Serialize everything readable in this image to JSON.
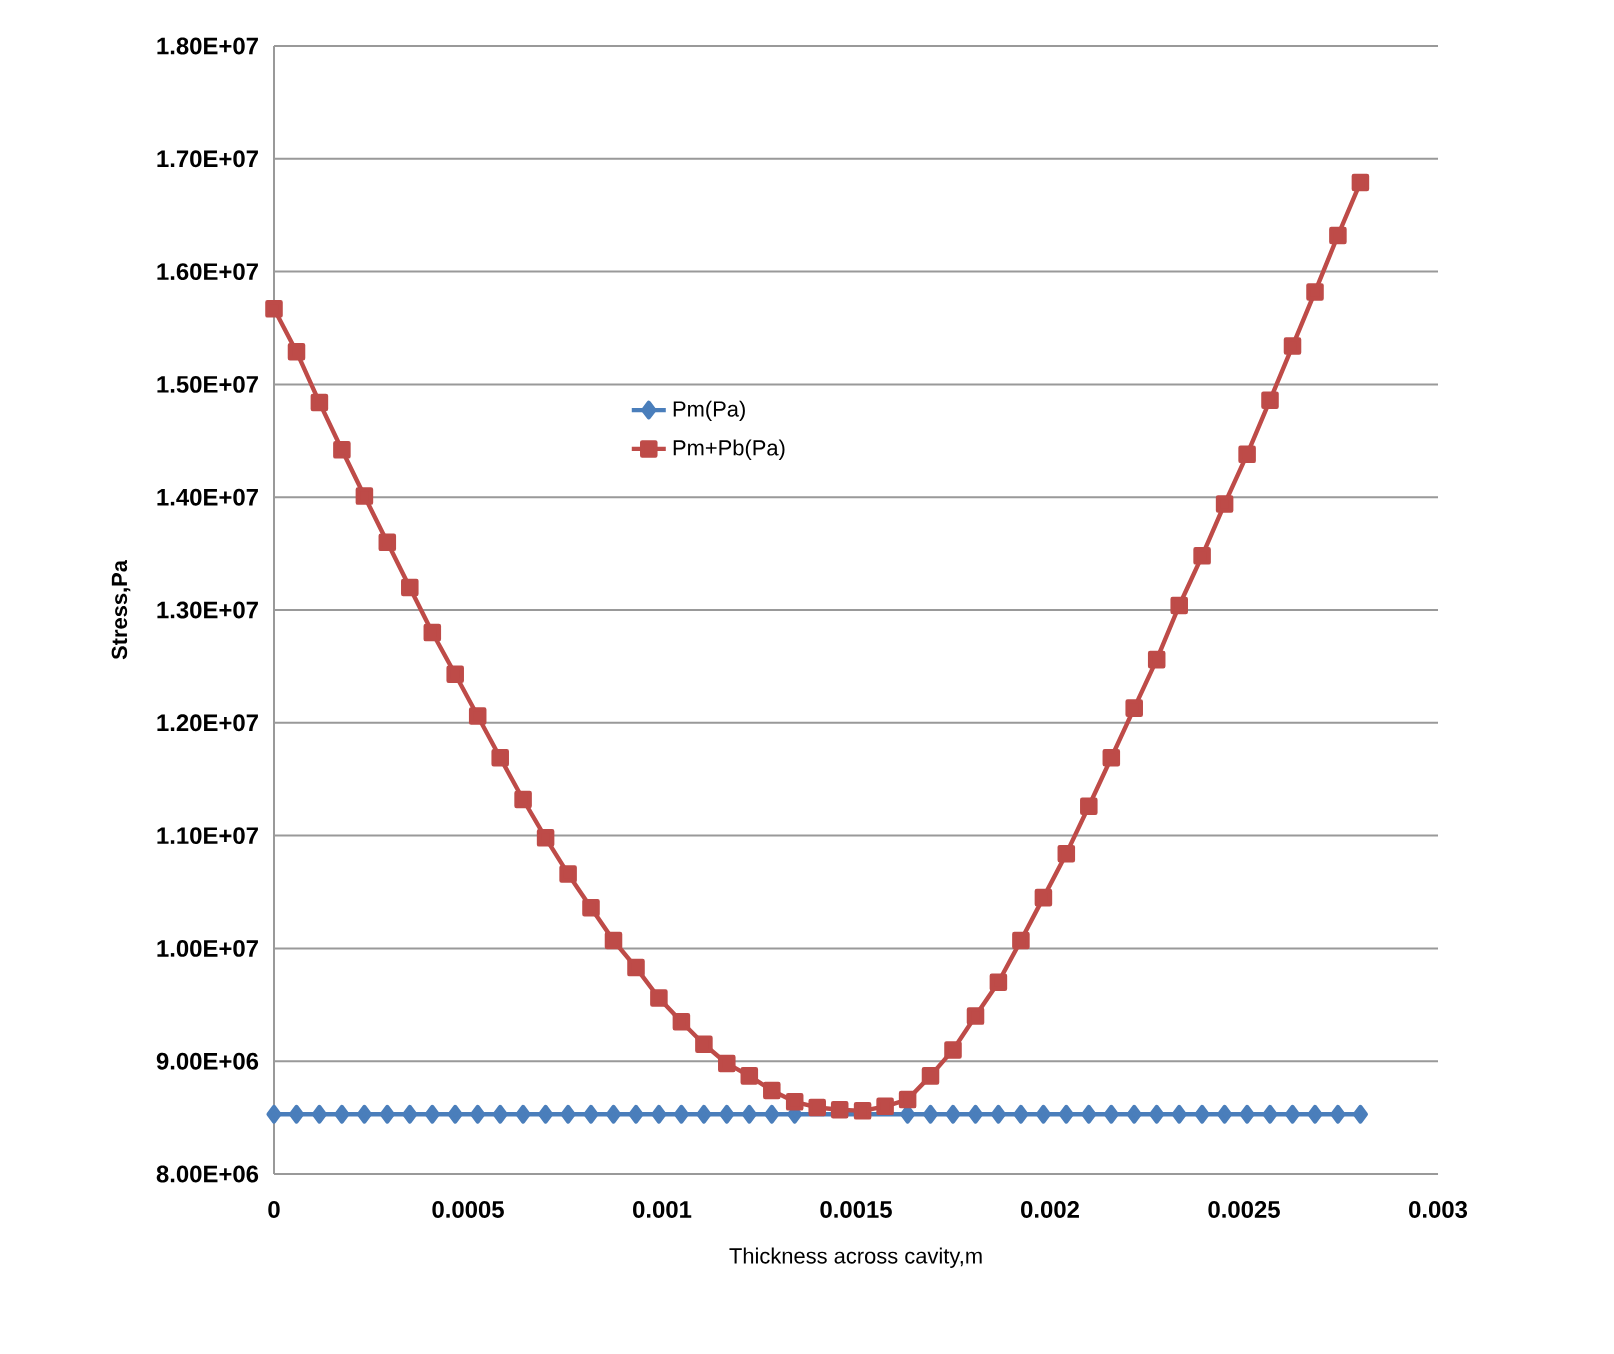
{
  "chart_data": {
    "type": "line",
    "xlabel": "Thickness across cavity,m",
    "ylabel": "Stress,Pa",
    "x": [
      0,
      5.8e-05,
      0.000117,
      0.000175,
      0.000233,
      0.000292,
      0.00035,
      0.000408,
      0.000467,
      0.000525,
      0.000583,
      0.000642,
      0.0007,
      0.000758,
      0.000817,
      0.000875,
      0.000933,
      0.000992,
      0.00105,
      0.001108,
      0.001167,
      0.001225,
      0.001283,
      0.001342,
      0.0014,
      0.001458,
      0.001517,
      0.001575,
      0.001633,
      0.001692,
      0.00175,
      0.001808,
      0.001867,
      0.001925,
      0.001983,
      0.002042,
      0.0021,
      0.002158,
      0.002217,
      0.002275,
      0.002333,
      0.002392,
      0.00245,
      0.002508,
      0.002567,
      0.002625,
      0.002683,
      0.002742,
      0.0028
    ],
    "series": [
      {
        "name": "Pm(Pa)",
        "color": "#4a7ebb",
        "marker": "diamond",
        "values": [
          8530000,
          8530000,
          8530000,
          8530000,
          8530000,
          8530000,
          8530000,
          8530000,
          8530000,
          8530000,
          8530000,
          8530000,
          8530000,
          8530000,
          8530000,
          8530000,
          8530000,
          8530000,
          8530000,
          8530000,
          8530000,
          8530000,
          8530000,
          8530000,
          null,
          null,
          null,
          null,
          8530000,
          8530000,
          8530000,
          8530000,
          8530000,
          8530000,
          8530000,
          8530000,
          8530000,
          8530000,
          8530000,
          8530000,
          8530000,
          8530000,
          8530000,
          8530000,
          8530000,
          8530000,
          8530000,
          8530000,
          8530000
        ]
      },
      {
        "name": "Pm+Pb(Pa)",
        "color": "#be4b48",
        "marker": "square",
        "values": [
          15670000,
          15290000,
          14840000,
          14420000,
          14010000,
          13600000,
          13200000,
          12800000,
          12430000,
          12060000,
          11690000,
          11320000,
          10980000,
          10660000,
          10360000,
          10070000,
          9830000,
          9560000,
          9350000,
          9150000,
          8980000,
          8870000,
          8740000,
          8640000,
          8590000,
          8570000,
          8560000,
          8600000,
          8660000,
          8870000,
          9100000,
          9400000,
          9700000,
          10070000,
          10450000,
          10840000,
          11260000,
          11690000,
          12130000,
          12560000,
          13040000,
          13480000,
          13940000,
          14380000,
          14860000,
          15340000,
          15820000,
          16320000,
          16790000
        ]
      }
    ],
    "xlim": [
      0,
      0.003
    ],
    "xticks": [
      0,
      0.0005,
      0.001,
      0.0015,
      0.002,
      0.0025,
      0.003
    ],
    "ylim": [
      8000000,
      18000000
    ],
    "yticks": [
      {
        "value": 8000000,
        "label": "8.00E+06"
      },
      {
        "value": 9000000,
        "label": "9.00E+06"
      },
      {
        "value": 10000000,
        "label": "1.00E+07"
      },
      {
        "value": 11000000,
        "label": "1.10E+07"
      },
      {
        "value": 12000000,
        "label": "1.20E+07"
      },
      {
        "value": 13000000,
        "label": "1.30E+07"
      },
      {
        "value": 14000000,
        "label": "1.40E+07"
      },
      {
        "value": 15000000,
        "label": "1.50E+07"
      },
      {
        "value": 16000000,
        "label": "1.60E+07"
      },
      {
        "value": 17000000,
        "label": "1.70E+07"
      },
      {
        "value": 18000000,
        "label": "1.80E+07"
      }
    ],
    "grid": "y",
    "legend": "left",
    "line_style": "solid"
  }
}
